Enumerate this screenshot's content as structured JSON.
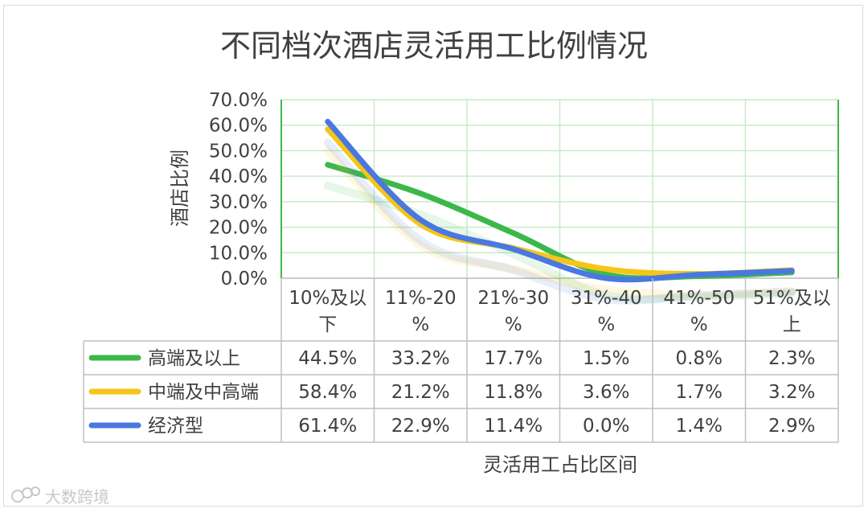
{
  "chart_data": {
    "type": "line",
    "title": "不同档次酒店灵活用工比例情况",
    "ylabel": "酒店比例",
    "xlabel": "灵活用工占比区间",
    "ylim": [
      0,
      70
    ],
    "y_ticks": [
      "0.0%",
      "10.0%",
      "20.0%",
      "30.0%",
      "40.0%",
      "50.0%",
      "60.0%",
      "70.0%"
    ],
    "categories": [
      [
        "10%及以",
        "下"
      ],
      [
        "11%-20",
        "%"
      ],
      [
        "21%-30",
        "%"
      ],
      [
        "31%-40",
        "%"
      ],
      [
        "41%-50",
        "%"
      ],
      [
        "51%及以",
        "上"
      ]
    ],
    "series": [
      {
        "name": "高端及以上",
        "color": "#3cb84a",
        "values": [
          44.5,
          33.2,
          17.7,
          1.5,
          0.8,
          2.3
        ],
        "labels": [
          "44.5%",
          "33.2%",
          "17.7%",
          "1.5%",
          "0.8%",
          "2.3%"
        ]
      },
      {
        "name": "中端及中高端",
        "color": "#f5c518",
        "values": [
          58.4,
          21.2,
          11.8,
          3.6,
          1.7,
          3.2
        ],
        "labels": [
          "58.4%",
          "21.2%",
          "11.8%",
          "3.6%",
          "1.7%",
          "3.2%"
        ]
      },
      {
        "name": "经济型",
        "color": "#4a78e0",
        "values": [
          61.4,
          22.9,
          11.4,
          0.0,
          1.4,
          2.9
        ],
        "labels": [
          "61.4%",
          "22.9%",
          "11.4%",
          "0.0%",
          "1.4%",
          "2.9%"
        ]
      }
    ],
    "gridline_color": "#c6ecc6",
    "data_table": true
  },
  "watermark": {
    "text": "大数跨境",
    "icon": "brand-logo-icon"
  }
}
